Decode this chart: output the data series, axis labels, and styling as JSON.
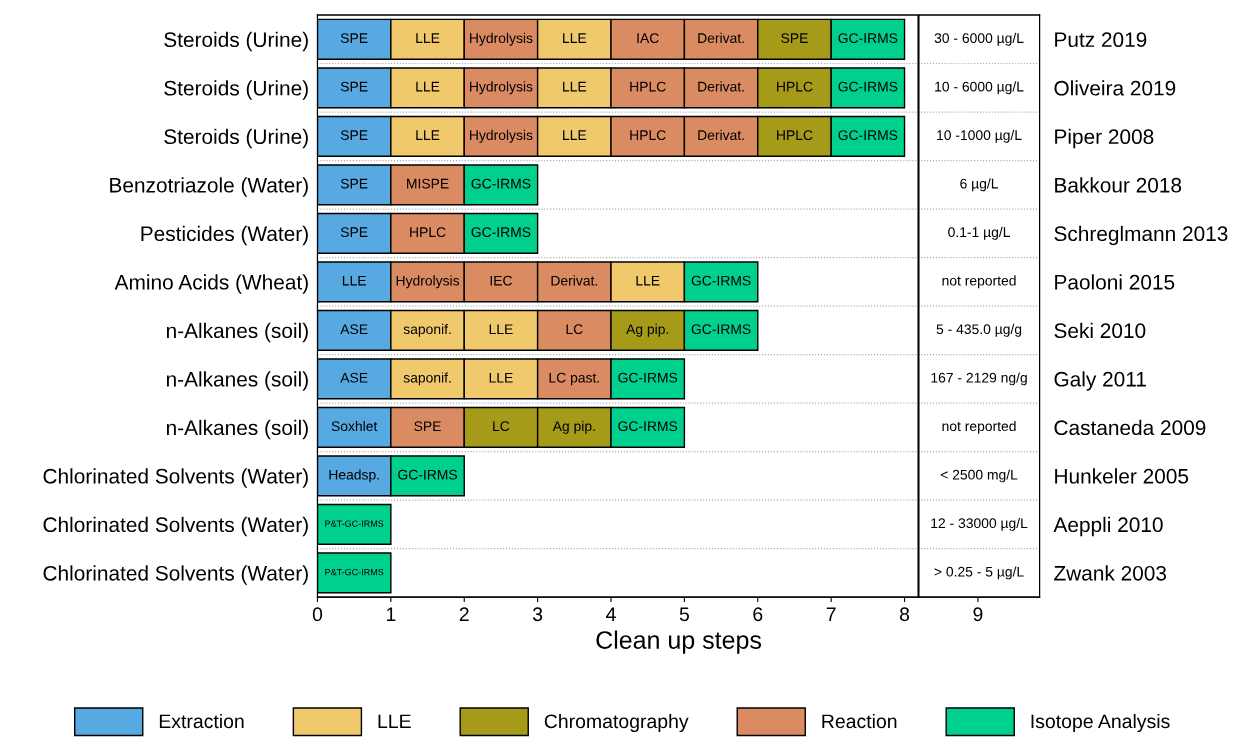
{
  "chart_data": {
    "type": "bar",
    "orientation": "horizontal",
    "stacked": true,
    "xlabel": "Clean up steps",
    "xlim": [
      0,
      9.84
    ],
    "xticks": [
      0,
      1,
      2,
      3,
      4,
      5,
      6,
      7,
      8,
      9
    ],
    "grid": "y",
    "legend": "bottom",
    "categories": [
      "Steroids (Urine)",
      "Steroids (Urine)",
      "Steroids (Urine)",
      "Benzotriazole (Water)",
      "Pesticides (Water)",
      "Amino Acids (Wheat)",
      "n-Alkanes (soil)",
      "n-Alkanes (soil)",
      "n-Alkanes (soil)",
      "Chlorinated Solvents (Water)",
      "Chlorinated Solvents (Water)",
      "Chlorinated Solvents (Water)"
    ],
    "y2_categories": [
      "Putz 2019",
      "Oliveira 2019",
      "Piper 2008",
      "Bakkour 2018",
      "Schreglmann 2013",
      "Paoloni 2015",
      "Seki 2010",
      "Galy 2011",
      "Castaneda 2009",
      "Hunkeler 2005",
      "Aeppli 2010",
      "Zwank 2003"
    ],
    "annotations": [
      "30 - 6000 µg/L",
      "10 - 6000 µg/L",
      "10 -1000 µg/L",
      "6 µg/L",
      "0.1-1 µg/L",
      "not reported",
      "5 - 435.0 µg/g",
      "167 - 2129 ng/g",
      "not reported",
      "< 2500 mg/L",
      "12 - 33000 µg/L",
      "> 0.25 - 5 µg/L"
    ],
    "ref_lines": [
      {
        "axis": "x",
        "value": 8.19,
        "color": "#000000"
      }
    ],
    "series": [
      {
        "values": [
          1,
          1,
          1,
          1,
          1,
          1,
          1,
          1,
          1,
          1,
          1,
          1
        ],
        "colors": [
          "#56a9e1",
          "#56a9e1",
          "#56a9e1",
          "#56a9e1",
          "#56a9e1",
          "#56a9e1",
          "#56a9e1",
          "#56a9e1",
          "#56a9e1",
          "#56a9e1",
          "#00d08e",
          "#00d08e"
        ],
        "value_labels": [
          "SPE",
          "SPE",
          "SPE",
          "SPE",
          "SPE",
          "LLE",
          "ASE",
          "ASE",
          "Soxhlet",
          "Headsp.",
          "P&T-GC-IRMS",
          "P&T-GC-IRMS"
        ]
      },
      {
        "values": [
          1,
          1,
          1,
          1,
          1,
          1,
          1,
          1,
          1,
          1,
          null,
          null
        ],
        "colors": [
          "#f1c96d",
          "#f1c96d",
          "#f1c96d",
          "#db8b61",
          "#db8b61",
          "#db8b61",
          "#f1c96d",
          "#f1c96d",
          "#db8b61",
          "#00d08e",
          null,
          null
        ],
        "value_labels": [
          "LLE",
          "LLE",
          "LLE",
          "MISPE",
          "HPLC",
          "Hydrolysis",
          "saponif.",
          "saponif.",
          "SPE",
          "GC-IRMS",
          null,
          null
        ]
      },
      {
        "values": [
          1,
          1,
          1,
          1,
          1,
          1,
          1,
          1,
          1,
          null,
          null,
          null
        ],
        "colors": [
          "#db8b61",
          "#db8b61",
          "#db8b61",
          "#00d08e",
          "#00d08e",
          "#db8b61",
          "#f1c96d",
          "#f1c96d",
          "#a59b18",
          null,
          null,
          null
        ],
        "value_labels": [
          "Hydrolysis",
          "Hydrolysis",
          "Hydrolysis",
          "GC-IRMS",
          "GC-IRMS",
          "IEC",
          "LLE",
          "LLE",
          "LC",
          null,
          null,
          null
        ]
      },
      {
        "values": [
          1,
          1,
          1,
          null,
          null,
          1,
          1,
          1,
          1,
          null,
          null,
          null
        ],
        "colors": [
          "#f1c96d",
          "#f1c96d",
          "#f1c96d",
          null,
          null,
          "#db8b61",
          "#db8b61",
          "#db8b61",
          "#a59b18",
          null,
          null,
          null
        ],
        "value_labels": [
          "LLE",
          "LLE",
          "LLE",
          null,
          null,
          "Derivat.",
          "LC",
          "LC past.",
          "Ag pip.",
          null,
          null,
          null
        ]
      },
      {
        "values": [
          1,
          1,
          1,
          null,
          null,
          1,
          1,
          1,
          1,
          null,
          null,
          null
        ],
        "colors": [
          "#db8b61",
          "#db8b61",
          "#db8b61",
          null,
          null,
          "#f1c96d",
          "#a59b18",
          "#00d08e",
          "#00d08e",
          null,
          null,
          null
        ],
        "value_labels": [
          "IAC",
          "HPLC",
          "HPLC",
          null,
          null,
          "LLE",
          "Ag pip.",
          "GC-IRMS",
          "GC-IRMS",
          null,
          null,
          null
        ]
      },
      {
        "values": [
          1,
          1,
          1,
          null,
          null,
          1,
          1,
          null,
          null,
          null,
          null,
          null
        ],
        "colors": [
          "#db8b61",
          "#db8b61",
          "#db8b61",
          null,
          null,
          "#00d08e",
          "#00d08e",
          null,
          null,
          null,
          null,
          null
        ],
        "value_labels": [
          "Derivat.",
          "Derivat.",
          "Derivat.",
          null,
          null,
          "GC-IRMS",
          "GC-IRMS",
          null,
          null,
          null,
          null,
          null
        ]
      },
      {
        "values": [
          1,
          1,
          1,
          null,
          null,
          null,
          null,
          null,
          null,
          null,
          null,
          null
        ],
        "colors": [
          "#a59b18",
          "#a59b18",
          "#a59b18",
          null,
          null,
          null,
          null,
          null,
          null,
          null,
          null,
          null
        ],
        "value_labels": [
          "SPE",
          "HPLC",
          "HPLC",
          null,
          null,
          null,
          null,
          null,
          null,
          null,
          null,
          null
        ]
      },
      {
        "values": [
          1,
          1,
          1,
          null,
          null,
          null,
          null,
          null,
          null,
          null,
          null,
          null
        ],
        "colors": [
          "#00d08e",
          "#00d08e",
          "#00d08e",
          null,
          null,
          null,
          null,
          null,
          null,
          null,
          null,
          null
        ],
        "value_labels": [
          "GC-IRMS",
          "GC-IRMS",
          "GC-IRMS",
          null,
          null,
          null,
          null,
          null,
          null,
          null,
          null,
          null
        ]
      },
      {
        "name": "Extraction",
        "color": "#56a9e1",
        "values": [
          null,
          null,
          null,
          null,
          null,
          null,
          null,
          null,
          null,
          null,
          null,
          null
        ]
      },
      {
        "name": "LLE",
        "color": "#f1c96d",
        "values": [
          null,
          null,
          null,
          null,
          null,
          null,
          null,
          null,
          null,
          null,
          null,
          null
        ]
      },
      {
        "name": "Chromatography",
        "color": "#a59b18",
        "values": [
          null,
          null,
          null,
          null,
          null,
          null,
          null,
          null,
          null,
          null,
          null,
          null
        ]
      },
      {
        "name": "Reaction",
        "color": "#db8b61",
        "values": [
          null,
          null,
          null,
          null,
          null,
          null,
          null,
          null,
          null,
          null,
          null,
          null
        ]
      },
      {
        "name": "Isotope Analysis",
        "color": "#00d08e",
        "values": [
          null,
          null,
          null,
          null,
          null,
          null,
          null,
          null,
          null,
          null,
          null,
          null
        ]
      }
    ]
  }
}
